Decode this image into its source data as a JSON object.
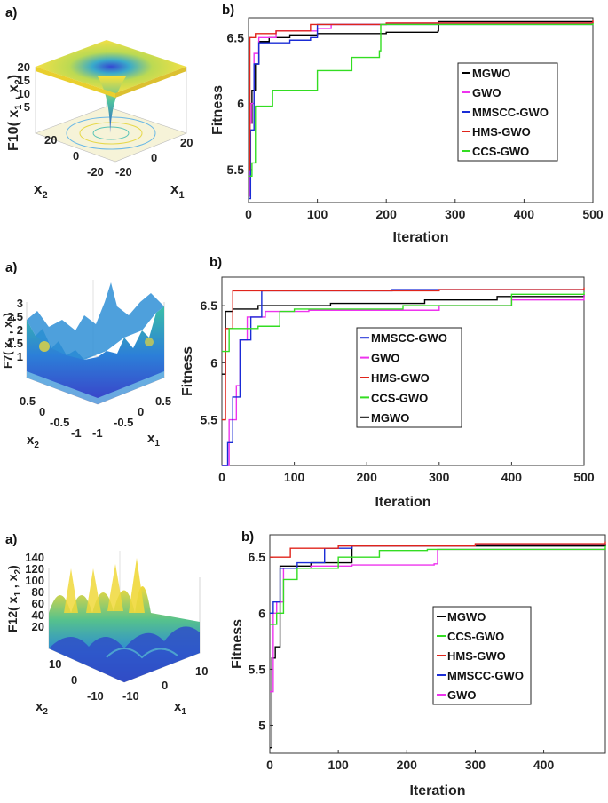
{
  "colors": {
    "MGWO": "#000000",
    "GWO": "#ee33ee",
    "MMSCC-GWO": "#1a2cd6",
    "HMS-GWO": "#e0241b",
    "CCS-GWO": "#33dd22"
  },
  "panels": [
    {
      "label_a": "a)",
      "label_b": "b)",
      "surface": {
        "zlabel_main": "F10( x",
        "zlabel_sub1": "1",
        "zlabel_mid": " , x",
        "zlabel_sub2": "2",
        "zlabel_end": ")",
        "zticks": [
          "20",
          "15",
          "10",
          "5"
        ],
        "x2ticks": [
          "20",
          "0",
          "-20"
        ],
        "x1ticks": [
          "-20",
          "0",
          "20"
        ],
        "x2label": "x",
        "x2sub": "2",
        "x1label": "x",
        "x1sub": "1",
        "icon": "funnel-surface-icon"
      },
      "chart_data": {
        "type": "line",
        "xlabel": "Iteration",
        "ylabel": "Fitness",
        "xlim": [
          0,
          500
        ],
        "ylim": [
          5.25,
          6.65
        ],
        "xticks": [
          "0",
          "100",
          "200",
          "300",
          "400",
          "500"
        ],
        "yticks": [
          "5.5",
          "6",
          "6.5"
        ],
        "ytick_values": [
          5.5,
          6,
          6.5
        ],
        "xtick_values": [
          0,
          100,
          200,
          300,
          400,
          500
        ],
        "legend": [
          "MGWO",
          "GWO",
          "MMSCC-GWO",
          "HMS-GWO",
          "CCS-GWO"
        ],
        "legend_position": "middle-right",
        "series": [
          {
            "name": "MGWO",
            "points": [
              [
                0,
                5.3
              ],
              [
                2,
                5.85
              ],
              [
                5,
                6.1
              ],
              [
                10,
                6.3
              ],
              [
                15,
                6.47
              ],
              [
                30,
                6.5
              ],
              [
                60,
                6.52
              ],
              [
                100,
                6.53
              ],
              [
                200,
                6.54
              ],
              [
                275,
                6.55
              ],
              [
                276,
                6.62
              ],
              [
                500,
                6.62
              ]
            ]
          },
          {
            "name": "GWO",
            "points": [
              [
                0,
                5.3
              ],
              [
                2,
                5.85
              ],
              [
                4,
                6.0
              ],
              [
                8,
                6.38
              ],
              [
                15,
                6.5
              ],
              [
                40,
                6.55
              ],
              [
                100,
                6.57
              ],
              [
                120,
                6.6
              ],
              [
                200,
                6.61
              ],
              [
                500,
                6.62
              ]
            ]
          },
          {
            "name": "MMSCC-GWO",
            "points": [
              [
                0,
                5.28
              ],
              [
                3,
                5.8
              ],
              [
                8,
                6.3
              ],
              [
                15,
                6.46
              ],
              [
                60,
                6.48
              ],
              [
                90,
                6.5
              ],
              [
                100,
                6.6
              ],
              [
                500,
                6.6
              ]
            ]
          },
          {
            "name": "HMS-GWO",
            "points": [
              [
                0,
                5.5
              ],
              [
                2,
                6.5
              ],
              [
                10,
                6.53
              ],
              [
                40,
                6.55
              ],
              [
                90,
                6.6
              ],
              [
                200,
                6.61
              ],
              [
                500,
                6.63
              ]
            ]
          },
          {
            "name": "CCS-GWO",
            "points": [
              [
                0,
                5.45
              ],
              [
                5,
                5.55
              ],
              [
                10,
                5.98
              ],
              [
                35,
                6.1
              ],
              [
                100,
                6.25
              ],
              [
                150,
                6.35
              ],
              [
                190,
                6.4
              ],
              [
                192,
                6.6
              ],
              [
                500,
                6.61
              ]
            ]
          }
        ]
      }
    },
    {
      "label_a": "a)",
      "label_b": "b)",
      "surface": {
        "zlabel_main": "F7( x",
        "zlabel_sub1": "1",
        "zlabel_mid": " , x",
        "zlabel_sub2": "2",
        "zlabel_end": ")",
        "zticks": [
          "3",
          "2.5",
          "2",
          "1.5",
          "1"
        ],
        "x2ticks": [
          "0.5",
          "0",
          "-0.5",
          "-1"
        ],
        "x1ticks": [
          "-1",
          "-0.5",
          "0",
          "0.5"
        ],
        "x2label": "x",
        "x2sub": "2",
        "x1label": "x",
        "x1sub": "1",
        "icon": "noisy-surface-icon"
      },
      "chart_data": {
        "type": "line",
        "xlabel": "Iteration",
        "ylabel": "Fitness",
        "xlim": [
          0,
          500
        ],
        "ylim": [
          5.1,
          6.75
        ],
        "xticks": [
          "0",
          "100",
          "200",
          "300",
          "400",
          "500"
        ],
        "yticks": [
          "5.5",
          "6",
          "6.5"
        ],
        "ytick_values": [
          5.5,
          6,
          6.5
        ],
        "xtick_values": [
          0,
          100,
          200,
          300,
          400,
          500
        ],
        "legend": [
          "MMSCC-GWO",
          "GWO",
          "HMS-GWO",
          "CCS-GWO",
          "MGWO"
        ],
        "legend_position": "center",
        "series": [
          {
            "name": "MGWO",
            "points": [
              [
                0,
                5.9
              ],
              [
                5,
                6.45
              ],
              [
                15,
                6.47
              ],
              [
                50,
                6.5
              ],
              [
                150,
                6.52
              ],
              [
                280,
                6.55
              ],
              [
                380,
                6.58
              ],
              [
                500,
                6.6
              ]
            ]
          },
          {
            "name": "GWO",
            "points": [
              [
                0,
                5.1
              ],
              [
                10,
                5.5
              ],
              [
                20,
                5.8
              ],
              [
                25,
                6.2
              ],
              [
                35,
                6.4
              ],
              [
                60,
                6.45
              ],
              [
                120,
                6.46
              ],
              [
                300,
                6.5
              ],
              [
                400,
                6.55
              ],
              [
                500,
                6.6
              ]
            ]
          },
          {
            "name": "MMSCC-GWO",
            "points": [
              [
                0,
                5.1
              ],
              [
                8,
                5.3
              ],
              [
                15,
                5.7
              ],
              [
                25,
                6.2
              ],
              [
                40,
                6.4
              ],
              [
                55,
                6.63
              ],
              [
                235,
                6.64
              ],
              [
                500,
                6.64
              ]
            ]
          },
          {
            "name": "HMS-GWO",
            "points": [
              [
                0,
                5.5
              ],
              [
                5,
                6.3
              ],
              [
                15,
                6.63
              ],
              [
                300,
                6.64
              ],
              [
                500,
                6.66
              ]
            ]
          },
          {
            "name": "CCS-GWO",
            "points": [
              [
                0,
                6.1
              ],
              [
                10,
                6.3
              ],
              [
                50,
                6.32
              ],
              [
                80,
                6.45
              ],
              [
                100,
                6.47
              ],
              [
                250,
                6.5
              ],
              [
                400,
                6.6
              ],
              [
                500,
                6.62
              ]
            ]
          }
        ]
      }
    },
    {
      "label_a": "a)",
      "label_b": "b)",
      "surface": {
        "zlabel_main": "F12( x",
        "zlabel_sub1": "1",
        "zlabel_mid": " , x",
        "zlabel_sub2": "2",
        "zlabel_end": ")",
        "zticks": [
          "140",
          "120",
          "100",
          "80",
          "60",
          "40",
          "20"
        ],
        "x2ticks": [
          "10",
          "0",
          "-10"
        ],
        "x1ticks": [
          "-10",
          "0",
          "10"
        ],
        "x2label": "x",
        "x2sub": "2",
        "x1label": "x",
        "x1sub": "1",
        "icon": "wavy-surface-icon"
      },
      "chart_data": {
        "type": "line",
        "xlabel": "Iteration",
        "ylabel": "Fitness",
        "xlim": [
          0,
          490
        ],
        "ylim": [
          4.75,
          6.7
        ],
        "xticks": [
          "0",
          "100",
          "200",
          "300",
          "400"
        ],
        "yticks": [
          "5",
          "5.5",
          "6",
          "6.5"
        ],
        "ytick_values": [
          5,
          5.5,
          6,
          6.5
        ],
        "xtick_values": [
          0,
          100,
          200,
          300,
          400
        ],
        "legend": [
          "MGWO",
          "CCS-GWO",
          "HMS-GWO",
          "MMSCC-GWO",
          "GWO"
        ],
        "legend_position": "center-right",
        "series": [
          {
            "name": "MGWO",
            "points": [
              [
                0,
                4.8
              ],
              [
                3,
                5.6
              ],
              [
                8,
                5.7
              ],
              [
                15,
                6.42
              ],
              [
                60,
                6.45
              ],
              [
                120,
                6.6
              ],
              [
                300,
                6.6
              ],
              [
                490,
                6.62
              ]
            ]
          },
          {
            "name": "GWO",
            "points": [
              [
                0,
                5.3
              ],
              [
                5,
                6.0
              ],
              [
                10,
                6.1
              ],
              [
                20,
                6.4
              ],
              [
                60,
                6.42
              ],
              [
                120,
                6.43
              ],
              [
                240,
                6.44
              ],
              [
                245,
                6.57
              ],
              [
                490,
                6.58
              ]
            ]
          },
          {
            "name": "MMSCC-GWO",
            "points": [
              [
                0,
                6.0
              ],
              [
                5,
                6.1
              ],
              [
                15,
                6.4
              ],
              [
                40,
                6.45
              ],
              [
                80,
                6.58
              ],
              [
                120,
                6.6
              ],
              [
                300,
                6.61
              ],
              [
                490,
                6.62
              ]
            ]
          },
          {
            "name": "HMS-GWO",
            "points": [
              [
                0,
                6.5
              ],
              [
                30,
                6.58
              ],
              [
                100,
                6.6
              ],
              [
                300,
                6.62
              ],
              [
                490,
                6.64
              ]
            ]
          },
          {
            "name": "CCS-GWO",
            "points": [
              [
                0,
                5.9
              ],
              [
                10,
                6.0
              ],
              [
                20,
                6.3
              ],
              [
                40,
                6.4
              ],
              [
                100,
                6.5
              ],
              [
                160,
                6.56
              ],
              [
                230,
                6.57
              ],
              [
                490,
                6.6
              ]
            ]
          }
        ]
      }
    }
  ]
}
